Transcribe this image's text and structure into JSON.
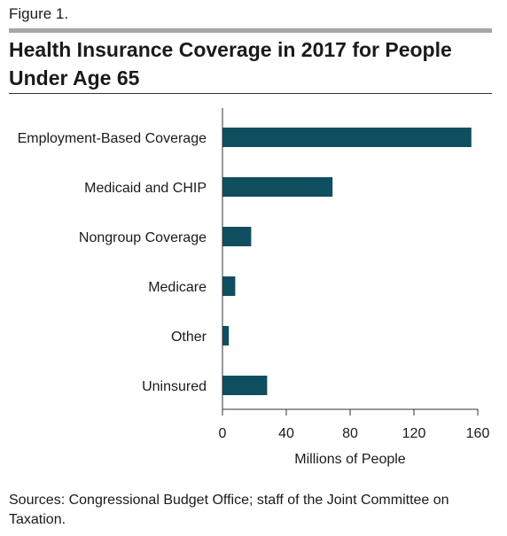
{
  "figure_label": "Figure 1.",
  "title": "Health Insurance Coverage in 2017 for People Under Age 65",
  "sources": "Sources: Congressional Budget Office; staff of the Joint Committee on Taxation.",
  "colors": {
    "bar": "#0f4f5f",
    "axis": "#333333",
    "rule": "#a6a6a6"
  },
  "chart_data": {
    "type": "bar",
    "orientation": "horizontal",
    "categories": [
      "Employment-Based Coverage",
      "Medicaid and CHIP",
      "Nongroup Coverage",
      "Medicare",
      "Other",
      "Uninsured"
    ],
    "values": [
      156,
      69,
      18,
      8,
      4,
      28
    ],
    "title": "Health Insurance Coverage in 2017 for People Under Age 65",
    "xlabel": "Millions of People",
    "ylabel": "",
    "xlim": [
      0,
      160
    ],
    "xticks": [
      0,
      40,
      80,
      120,
      160
    ],
    "grid": false,
    "legend": "none"
  }
}
